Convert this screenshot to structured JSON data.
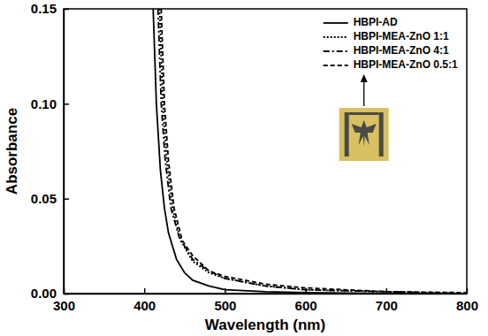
{
  "chart_data": {
    "type": "line",
    "xlabel": "Wavelength (nm)",
    "ylabel": "Absorbance",
    "xlim": [
      300,
      800
    ],
    "xticks": [
      300,
      400,
      500,
      600,
      700,
      800
    ],
    "ylim": [
      0,
      0.15
    ],
    "yticks": [
      {
        "value": 0,
        "label": "0.00"
      },
      0.05,
      {
        "value": 0.1,
        "label": "0.10"
      },
      {
        "value": 0.15,
        "label": "0.15"
      }
    ],
    "grid": false,
    "legend": "upper right",
    "series": [
      {
        "name": "HBPI-AD",
        "color": "#000000",
        "line_style": "solid",
        "x": [
          411,
          415,
          420,
          425,
          430,
          440,
          450,
          460,
          480,
          500,
          550,
          600,
          700,
          800
        ],
        "values": [
          0.15,
          0.1,
          0.065,
          0.045,
          0.032,
          0.018,
          0.011,
          0.007,
          0.004,
          0.002,
          0.001,
          0.0005,
          0,
          0
        ]
      },
      {
        "name": "HBPI-MEA-ZnO 1:1",
        "color": "#000000",
        "line_style": "dotted",
        "x": [
          419,
          423,
          428,
          435,
          445,
          460,
          480,
          500,
          550,
          600,
          700,
          800
        ],
        "values": [
          0.15,
          0.1,
          0.07,
          0.045,
          0.028,
          0.017,
          0.011,
          0.008,
          0.004,
          0.002,
          0.001,
          0
        ]
      },
      {
        "name": "HBPI-MEA-ZnO 4:1",
        "color": "#000000",
        "line_style": "dashdot",
        "x": [
          417,
          421,
          426,
          433,
          443,
          460,
          480,
          500,
          550,
          600,
          700,
          800
        ],
        "values": [
          0.15,
          0.1,
          0.07,
          0.045,
          0.03,
          0.018,
          0.012,
          0.008,
          0.004,
          0.002,
          0.001,
          0
        ]
      },
      {
        "name": "HBPI-MEA-ZnO 0.5:1",
        "color": "#000000",
        "line_style": "dashed",
        "x": [
          421,
          425,
          430,
          437,
          447,
          460,
          480,
          500,
          550,
          600,
          700,
          800
        ],
        "values": [
          0.15,
          0.1,
          0.07,
          0.045,
          0.028,
          0.02,
          0.012,
          0.009,
          0.005,
          0.003,
          0.001,
          0.0005
        ]
      }
    ]
  }
}
